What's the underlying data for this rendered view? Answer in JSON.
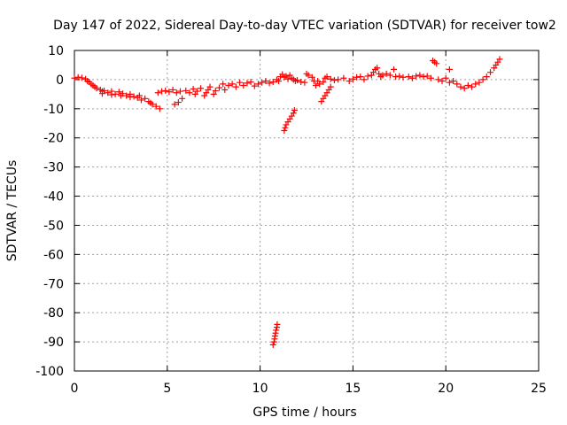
{
  "chart_data": {
    "type": "scatter",
    "title": "Day 147 of 2022, Sidereal Day-to-day VTEC variation (SDTVAR) for receiver tow2",
    "xlabel": "GPS time / hours",
    "ylabel": "SDTVAR / TECUs",
    "xlim": [
      0,
      25
    ],
    "ylim": [
      -100,
      10
    ],
    "grid": true,
    "marker": "plus",
    "color": "#ff0000",
    "x_ticks": [
      0,
      5,
      10,
      15,
      20,
      25
    ],
    "x_tick_labels": [
      "0",
      "5",
      "10",
      "15",
      "20",
      "25"
    ],
    "y_ticks": [
      10,
      0,
      -10,
      -20,
      -30,
      -40,
      -50,
      -60,
      -70,
      -80,
      -90,
      -100
    ],
    "y_tick_labels": [
      "10",
      "0",
      "-10",
      "-20",
      "-30",
      "-40",
      "-50",
      "-60",
      "-70",
      "-80",
      "-90",
      "-100"
    ],
    "series": [
      {
        "name": "SDTVAR",
        "points": [
          [
            0.0,
            0.5
          ],
          [
            0.2,
            0.8
          ],
          [
            0.4,
            0.6
          ],
          [
            0.6,
            0.2
          ],
          [
            0.7,
            -0.5
          ],
          [
            0.8,
            -0.8
          ],
          [
            0.9,
            -1.5
          ],
          [
            1.0,
            -2.0
          ],
          [
            1.1,
            -2.5
          ],
          [
            1.2,
            -3.0
          ],
          [
            1.4,
            -3.5
          ],
          [
            1.5,
            -4.0
          ],
          [
            1.6,
            -3.8
          ],
          [
            1.8,
            -4.5
          ],
          [
            2.0,
            -4.0
          ],
          [
            2.2,
            -5.0
          ],
          [
            2.4,
            -4.2
          ],
          [
            2.6,
            -4.8
          ],
          [
            2.8,
            -5.5
          ],
          [
            3.0,
            -5.0
          ],
          [
            3.2,
            -5.8
          ],
          [
            3.4,
            -6.2
          ],
          [
            3.5,
            -5.5
          ],
          [
            3.6,
            -7.0
          ],
          [
            3.8,
            -6.5
          ],
          [
            4.0,
            -7.5
          ],
          [
            4.1,
            -8.0
          ],
          [
            4.2,
            -8.5
          ],
          [
            4.4,
            -9.2
          ],
          [
            4.6,
            -10.0
          ],
          [
            1.5,
            -4.8
          ],
          [
            2.0,
            -5.2
          ],
          [
            2.5,
            -5.5
          ],
          [
            3.0,
            -6.0
          ],
          [
            4.5,
            -4.5
          ],
          [
            4.7,
            -4.0
          ],
          [
            4.9,
            -3.8
          ],
          [
            5.1,
            -4.2
          ],
          [
            5.3,
            -3.5
          ],
          [
            5.4,
            -8.5
          ],
          [
            5.6,
            -7.8
          ],
          [
            5.8,
            -6.5
          ],
          [
            5.5,
            -4.5
          ],
          [
            5.7,
            -4.0
          ],
          [
            6.0,
            -3.8
          ],
          [
            6.2,
            -4.5
          ],
          [
            6.4,
            -3.2
          ],
          [
            6.5,
            -5.0
          ],
          [
            6.6,
            -4.0
          ],
          [
            6.8,
            -3.0
          ],
          [
            7.0,
            -5.5
          ],
          [
            7.1,
            -4.5
          ],
          [
            7.2,
            -3.5
          ],
          [
            7.3,
            -2.5
          ],
          [
            7.5,
            -5.0
          ],
          [
            7.6,
            -3.8
          ],
          [
            7.8,
            -2.8
          ],
          [
            8.0,
            -1.5
          ],
          [
            8.1,
            -3.5
          ],
          [
            8.3,
            -2.0
          ],
          [
            8.5,
            -1.5
          ],
          [
            8.7,
            -2.5
          ],
          [
            8.9,
            -1.0
          ],
          [
            9.1,
            -2.0
          ],
          [
            9.3,
            -1.2
          ],
          [
            9.5,
            -0.8
          ],
          [
            9.7,
            -2.2
          ],
          [
            9.9,
            -1.5
          ],
          [
            10.1,
            -1.0
          ],
          [
            10.3,
            -0.5
          ],
          [
            10.5,
            -1.2
          ],
          [
            10.7,
            -0.8
          ],
          [
            10.9,
            0.0
          ],
          [
            11.0,
            -0.5
          ],
          [
            11.1,
            1.0
          ],
          [
            11.2,
            1.8
          ],
          [
            11.3,
            0.8
          ],
          [
            11.4,
            1.2
          ],
          [
            11.5,
            0.2
          ],
          [
            11.6,
            1.5
          ],
          [
            11.7,
            0.5
          ],
          [
            11.8,
            0.0
          ],
          [
            11.9,
            -0.5
          ],
          [
            12.0,
            -0.2
          ],
          [
            12.2,
            -0.8
          ],
          [
            12.4,
            -1.0
          ],
          [
            12.5,
            2.0
          ],
          [
            12.6,
            1.5
          ],
          [
            12.8,
            0.8
          ],
          [
            12.9,
            -0.5
          ],
          [
            13.0,
            -2.0
          ],
          [
            13.1,
            -0.5
          ],
          [
            13.2,
            -1.5
          ],
          [
            13.4,
            -0.8
          ],
          [
            13.5,
            0.5
          ],
          [
            13.6,
            1.0
          ],
          [
            13.8,
            0.2
          ],
          [
            14.0,
            -0.2
          ],
          [
            14.2,
            0.0
          ],
          [
            14.5,
            0.5
          ],
          [
            14.8,
            -0.5
          ],
          [
            15.0,
            0.2
          ],
          [
            15.2,
            0.8
          ],
          [
            15.4,
            1.0
          ],
          [
            15.6,
            0.0
          ],
          [
            15.8,
            1.2
          ],
          [
            16.0,
            1.5
          ],
          [
            16.1,
            2.5
          ],
          [
            16.2,
            3.5
          ],
          [
            16.3,
            4.0
          ],
          [
            16.4,
            2.0
          ],
          [
            16.5,
            1.0
          ],
          [
            16.6,
            1.5
          ],
          [
            16.8,
            2.0
          ],
          [
            17.0,
            1.5
          ],
          [
            17.2,
            3.5
          ],
          [
            17.3,
            1.0
          ],
          [
            17.5,
            1.2
          ],
          [
            17.7,
            0.8
          ],
          [
            18.0,
            1.0
          ],
          [
            18.2,
            0.5
          ],
          [
            18.4,
            1.2
          ],
          [
            18.6,
            1.5
          ],
          [
            18.8,
            1.0
          ],
          [
            19.0,
            1.2
          ],
          [
            19.2,
            0.5
          ],
          [
            19.3,
            6.5
          ],
          [
            19.4,
            6.0
          ],
          [
            19.5,
            5.5
          ],
          [
            19.6,
            0.0
          ],
          [
            19.8,
            -0.5
          ],
          [
            20.0,
            0.5
          ],
          [
            20.2,
            -1.0
          ],
          [
            20.4,
            -0.5
          ],
          [
            20.6,
            -1.5
          ],
          [
            20.8,
            -2.5
          ],
          [
            21.0,
            -3.0
          ],
          [
            21.2,
            -2.0
          ],
          [
            21.4,
            -2.5
          ],
          [
            21.6,
            -1.5
          ],
          [
            21.8,
            -1.0
          ],
          [
            22.0,
            0.0
          ],
          [
            22.2,
            1.0
          ],
          [
            22.4,
            2.5
          ],
          [
            22.6,
            4.0
          ],
          [
            22.7,
            5.0
          ],
          [
            22.8,
            6.0
          ],
          [
            22.9,
            7.0
          ],
          [
            20.2,
            3.5
          ],
          [
            11.3,
            -17.5
          ],
          [
            11.35,
            -16.5
          ],
          [
            11.4,
            -15.5
          ],
          [
            11.5,
            -14.5
          ],
          [
            11.6,
            -13.5
          ],
          [
            11.7,
            -12.5
          ],
          [
            11.8,
            -11.5
          ],
          [
            11.85,
            -10.5
          ],
          [
            13.3,
            -7.5
          ],
          [
            13.4,
            -6.5
          ],
          [
            13.5,
            -5.5
          ],
          [
            13.6,
            -4.5
          ],
          [
            13.7,
            -3.5
          ],
          [
            13.8,
            -2.5
          ],
          [
            10.7,
            -91.0
          ],
          [
            10.75,
            -90.0
          ],
          [
            10.78,
            -89.0
          ],
          [
            10.8,
            -88.0
          ],
          [
            10.83,
            -87.0
          ],
          [
            10.86,
            -86.0
          ],
          [
            10.9,
            -85.0
          ],
          [
            10.92,
            -84.0
          ]
        ]
      }
    ]
  }
}
